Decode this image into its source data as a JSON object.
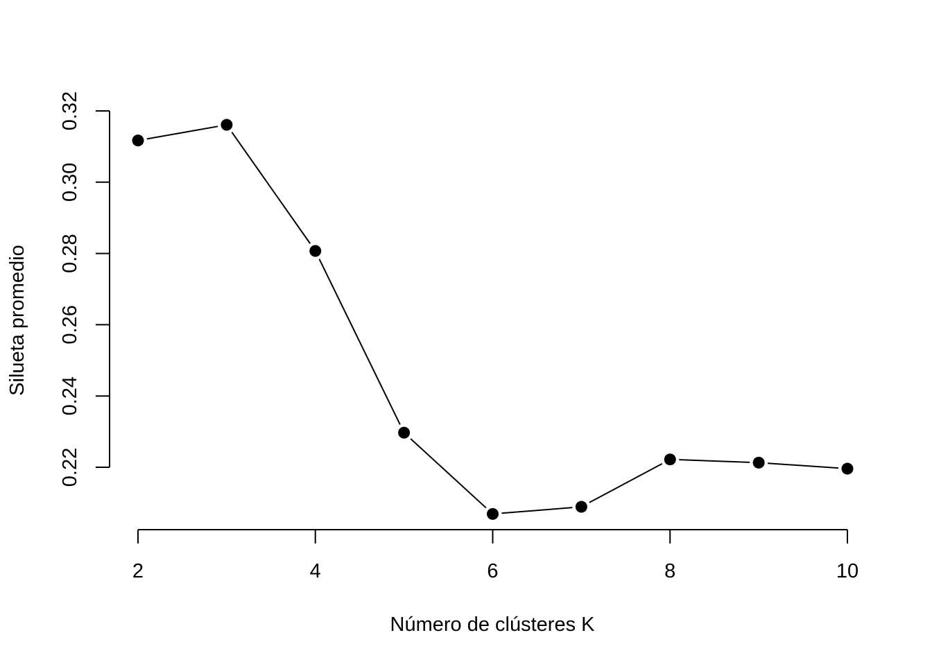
{
  "chart_data": {
    "type": "line",
    "title": "",
    "xlabel": "Número de clústeres K",
    "ylabel": "Silueta  promedio",
    "x": [
      2,
      3,
      4,
      5,
      6,
      7,
      8,
      9,
      10
    ],
    "series": [
      {
        "values": [
          0.3117,
          0.3161,
          0.2807,
          0.2297,
          0.2069,
          0.2089,
          0.2222,
          0.2213,
          0.2196
        ]
      }
    ],
    "x_ticks": [
      2,
      4,
      6,
      8,
      10
    ],
    "x_tick_labels": [
      "2",
      "4",
      "6",
      "8",
      "10"
    ],
    "y_ticks": [
      0.22,
      0.24,
      0.26,
      0.28,
      0.3,
      0.32
    ],
    "y_tick_labels": [
      "0.22",
      "0.24",
      "0.26",
      "0.28",
      "0.30",
      "0.32"
    ],
    "xlim": [
      2,
      10
    ],
    "ylim": [
      0.22,
      0.32
    ],
    "grid": false,
    "legend": "none",
    "marker": "filled-circle",
    "line_color": "#000000",
    "point_color": "#000000"
  }
}
